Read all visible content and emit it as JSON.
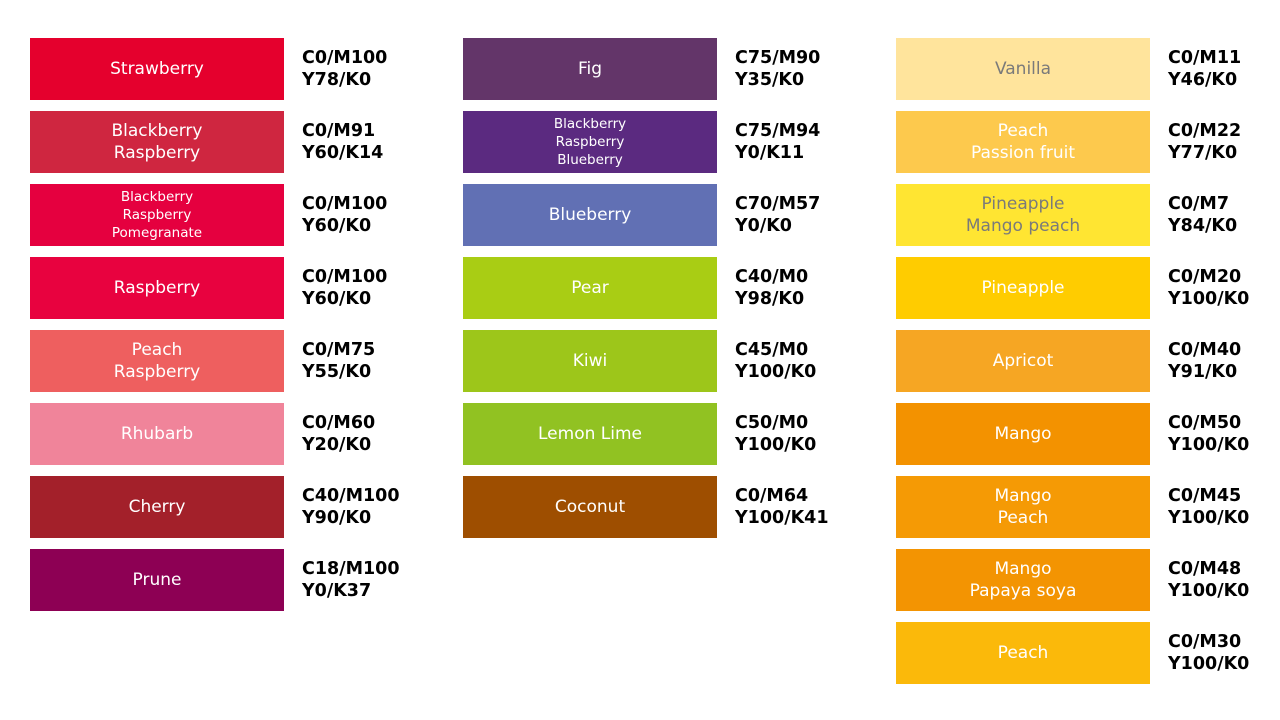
{
  "columns": [
    {
      "items": [
        {
          "lines": [
            "Strawberry"
          ],
          "code": [
            "C0/M100",
            "Y78/K0"
          ],
          "color": "#E5002D"
        },
        {
          "lines": [
            "Blackberry",
            "Raspberry"
          ],
          "code": [
            "C0/M91",
            "Y60/K14"
          ],
          "color": "#CF2640"
        },
        {
          "lines": [
            "Blackberry",
            "Raspberry",
            "Pomegranate"
          ],
          "code": [
            "C0/M100",
            "Y60/K0"
          ],
          "color": "#E5003F"
        },
        {
          "lines": [
            "Raspberry"
          ],
          "code": [
            "C0/M100",
            "Y60/K0"
          ],
          "color": "#E8023F"
        },
        {
          "lines": [
            "Peach",
            "Raspberry"
          ],
          "code": [
            "C0/M75",
            "Y55/K0"
          ],
          "color": "#EE5F5F"
        },
        {
          "lines": [
            "Rhubarb"
          ],
          "code": [
            "C0/M60",
            "Y20/K0"
          ],
          "color": "#F0849A"
        },
        {
          "lines": [
            "Cherry"
          ],
          "code": [
            "C40/M100",
            "Y90/K0"
          ],
          "color": "#A3202A"
        },
        {
          "lines": [
            "Prune"
          ],
          "code": [
            "C18/M100",
            "Y0/K37"
          ],
          "color": "#8D0054"
        }
      ]
    },
    {
      "items": [
        {
          "lines": [
            "Fig"
          ],
          "code": [
            "C75/M90",
            "Y35/K0"
          ],
          "color": "#633569"
        },
        {
          "lines": [
            "Blackberry",
            "Raspberry",
            "Blueberry"
          ],
          "code": [
            "C75/M94",
            "Y0/K11"
          ],
          "color": "#5B2A80"
        },
        {
          "lines": [
            "Blueberry"
          ],
          "code": [
            "C70/M57",
            "Y0/K0"
          ],
          "color": "#6170B4"
        },
        {
          "lines": [
            "Pear"
          ],
          "code": [
            "C40/M0",
            "Y98/K0"
          ],
          "color": "#A9CD14"
        },
        {
          "lines": [
            "Kiwi"
          ],
          "code": [
            "C45/M0",
            "Y100/K0"
          ],
          "color": "#9DC61A"
        },
        {
          "lines": [
            "Lemon Lime"
          ],
          "code": [
            "C50/M0",
            "Y100/K0"
          ],
          "color": "#91C222"
        },
        {
          "lines": [
            "Coconut"
          ],
          "code": [
            "C0/M64",
            "Y100/K41"
          ],
          "color": "#9E4E00"
        }
      ]
    },
    {
      "items": [
        {
          "lines": [
            "Vanilla"
          ],
          "code": [
            "C0/M11",
            "Y46/K0"
          ],
          "color": "#FFE49C",
          "text_color": "#7A7A7A"
        },
        {
          "lines": [
            "Peach",
            "Passion fruit"
          ],
          "code": [
            "C0/M22",
            "Y77/K0"
          ],
          "color": "#FDC94D"
        },
        {
          "lines": [
            "Pineapple",
            "Mango peach"
          ],
          "code": [
            "C0/M7",
            "Y84/K0"
          ],
          "color": "#FFE532",
          "text_color": "#7A7A7A"
        },
        {
          "lines": [
            "Pineapple"
          ],
          "code": [
            "C0/M20",
            "Y100/K0"
          ],
          "color": "#FFCC00"
        },
        {
          "lines": [
            "Apricot"
          ],
          "code": [
            "C0/M40",
            "Y91/K0"
          ],
          "color": "#F6A623"
        },
        {
          "lines": [
            "Mango"
          ],
          "code": [
            "C0/M50",
            "Y100/K0"
          ],
          "color": "#F39200"
        },
        {
          "lines": [
            "Mango",
            "Peach"
          ],
          "code": [
            "C0/M45",
            "Y100/K0"
          ],
          "color": "#F59A05"
        },
        {
          "lines": [
            "Mango",
            "Papaya soya"
          ],
          "code": [
            "C0/M48",
            "Y100/K0"
          ],
          "color": "#F39402"
        },
        {
          "lines": [
            "Peach"
          ],
          "code": [
            "C0/M30",
            "Y100/K0"
          ],
          "color": "#FBB90A"
        }
      ]
    }
  ]
}
